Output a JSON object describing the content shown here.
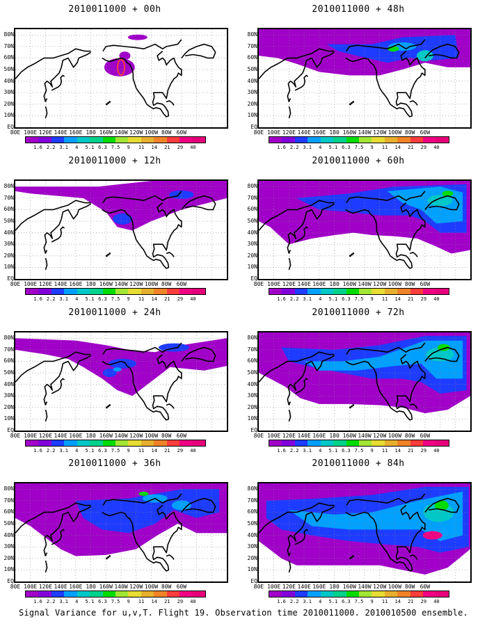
{
  "caption": "Signal Variance for u,v,T. Flight 19. Observation time 2010011000. 2010010500 ensemble.",
  "panels": [
    {
      "title": "2010011000 + 00h",
      "lead_hours": 0
    },
    {
      "title": "2010011000 + 48h",
      "lead_hours": 48
    },
    {
      "title": "2010011000 + 12h",
      "lead_hours": 12
    },
    {
      "title": "2010011000 + 60h",
      "lead_hours": 60
    },
    {
      "title": "2010011000 + 24h",
      "lead_hours": 24
    },
    {
      "title": "2010011000 + 72h",
      "lead_hours": 72
    },
    {
      "title": "2010011000 + 36h",
      "lead_hours": 36
    },
    {
      "title": "2010011000 + 84h",
      "lead_hours": 84
    }
  ],
  "axes": {
    "x_ticks": [
      "80E",
      "100E",
      "120E",
      "140E",
      "160E",
      "180",
      "160W",
      "140W",
      "120W",
      "100W",
      "80W",
      "60W"
    ],
    "y_ticks": [
      "80N",
      "70N",
      "60N",
      "50N",
      "40N",
      "30N",
      "20N",
      "10N",
      "EQ"
    ]
  },
  "colorbar": {
    "labels": [
      "1.6",
      "2.2",
      "3.1",
      "4",
      "5.1",
      "6.3",
      "7.5",
      "9",
      "11",
      "14",
      "21",
      "29",
      "40"
    ],
    "colors": [
      "#a000c8",
      "#8200dc",
      "#1e3cff",
      "#00a0ff",
      "#00c8c8",
      "#00d28c",
      "#00dc00",
      "#a0e632",
      "#e6dc32",
      "#e6af2d",
      "#f08228",
      "#fa3c3c",
      "#f00082",
      "#e6007a"
    ]
  }
}
